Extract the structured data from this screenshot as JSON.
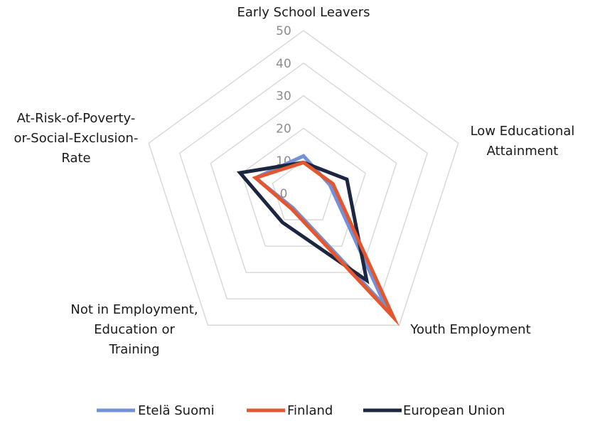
{
  "chart_data": {
    "type": "radar",
    "title": "",
    "axes": [
      "Early School Leavers",
      "Low Educational Attainment",
      "Youth Employment",
      "Not in Employment, Education or Training",
      "At-Risk-of-Poverty-or-Social-Exclusion-Rate"
    ],
    "axis_label_lines": [
      [
        "Early School Leavers"
      ],
      [
        "Low Educational",
        "Attainment"
      ],
      [
        "Youth Employment"
      ],
      [
        "Not in Employment,",
        "Education or",
        "Training"
      ],
      [
        "At-Risk-of-Poverty-",
        "or-Social-Exclusion-",
        "Rate"
      ]
    ],
    "rlim": [
      0,
      50
    ],
    "ticks": [
      0,
      10,
      20,
      30,
      40,
      50
    ],
    "grid": true,
    "legend_position": "bottom",
    "series": [
      {
        "name": "Etelä Suomi",
        "values": [
          11.5,
          8.5,
          43,
          5.5,
          15.5
        ],
        "color": "#7391D8"
      },
      {
        "name": "Finland",
        "values": [
          9.5,
          9.5,
          47,
          6,
          15.5
        ],
        "color": "#E4572E"
      },
      {
        "name": "European Union",
        "values": [
          9.5,
          14,
          33,
          11,
          20.5
        ],
        "color": "#1B2641"
      }
    ],
    "draw_order": [
      "Etelä Suomi",
      "European Union",
      "Finland"
    ]
  }
}
